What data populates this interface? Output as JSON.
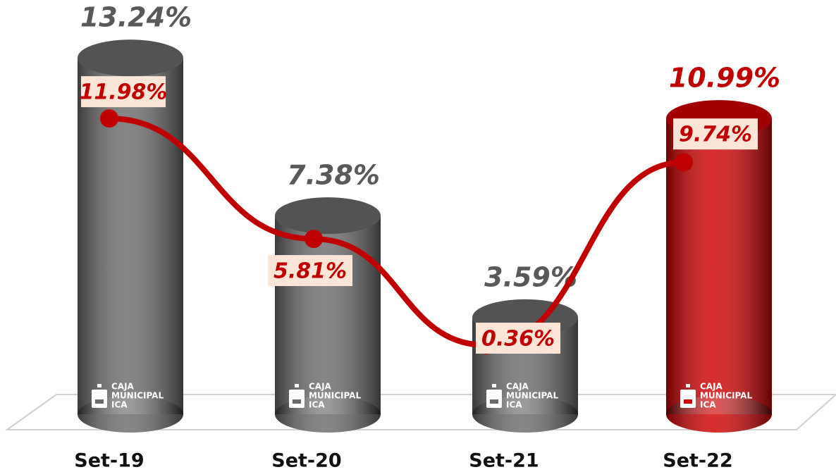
{
  "chart_data": {
    "type": "bar",
    "categories": [
      "Set-19",
      "Set-20",
      "Set-21",
      "Set-22"
    ],
    "values": [
      13.24,
      7.38,
      3.59,
      10.99
    ],
    "value_labels": [
      "13.24%",
      "7.38%",
      "3.59%",
      "10.99%"
    ],
    "colors": [
      "#6b6b6b",
      "#6b6b6b",
      "#6b6b6b",
      "#d00000"
    ],
    "label_colors": [
      "#595959",
      "#595959",
      "#595959",
      "#c00000"
    ],
    "line": {
      "type": "line",
      "values": [
        11.98,
        5.81,
        0.36,
        9.74
      ],
      "value_labels": [
        "11.98%",
        "5.81%",
        "0.36%",
        "9.74%"
      ],
      "color": "#c00000"
    },
    "logo_text": [
      "CAJA",
      "MUNICIPAL",
      "ICA"
    ]
  }
}
